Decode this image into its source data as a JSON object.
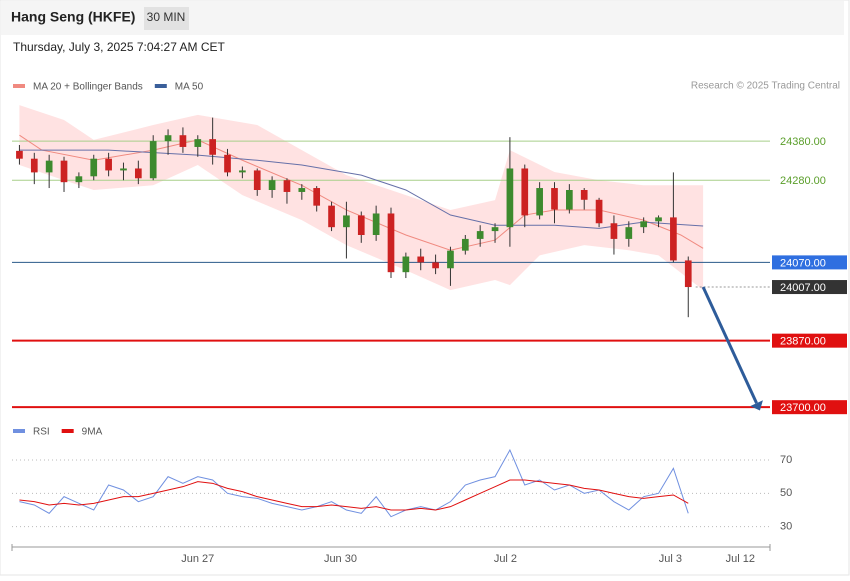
{
  "header": {
    "title": "Hang Seng (HKFE)",
    "interval": "30 MIN",
    "timestamp": "Thursday, July 3, 2025 7:04:27 AM CET"
  },
  "chart_data": {
    "type": "candlestick",
    "legend": [
      {
        "name": "MA 20 + Bollinger Bands",
        "color": "#f08a80"
      },
      {
        "name": "MA 50",
        "color": "#3a5f9a"
      }
    ],
    "credit": "Research © 2025 Trading Central",
    "xlim": [
      -0.5,
      50.5
    ],
    "xticks": [
      {
        "value": 12,
        "label": "Jun 27"
      },
      {
        "value": 21.6,
        "label": "Jun 30"
      },
      {
        "value": 32.7,
        "label": "Jul 2"
      },
      {
        "value": 43.8,
        "label": "Jul 3"
      },
      {
        "value": 48.5,
        "label": "Jul 12"
      }
    ],
    "ylim": [
      23680,
      24485
    ],
    "up_color": "#3d8a2e",
    "down_color": "#cc2222",
    "candles": [
      [
        24355,
        24370,
        24320,
        24335
      ],
      [
        24335,
        24350,
        24270,
        24300
      ],
      [
        24300,
        24345,
        24260,
        24330
      ],
      [
        24330,
        24340,
        24250,
        24275
      ],
      [
        24275,
        24300,
        24260,
        24290
      ],
      [
        24290,
        24345,
        24280,
        24335
      ],
      [
        24335,
        24350,
        24290,
        24305
      ],
      [
        24305,
        24325,
        24280,
        24310
      ],
      [
        24310,
        24330,
        24270,
        24285
      ],
      [
        24285,
        24395,
        24280,
        24380
      ],
      [
        24380,
        24410,
        24345,
        24395
      ],
      [
        24395,
        24415,
        24350,
        24365
      ],
      [
        24365,
        24395,
        24340,
        24385
      ],
      [
        24385,
        24440,
        24320,
        24345
      ],
      [
        24345,
        24360,
        24290,
        24300
      ],
      [
        24300,
        24315,
        24285,
        24305
      ],
      [
        24305,
        24310,
        24240,
        24255
      ],
      [
        24255,
        24290,
        24235,
        24280
      ],
      [
        24280,
        24285,
        24220,
        24250
      ],
      [
        24250,
        24270,
        24230,
        24260
      ],
      [
        24260,
        24265,
        24200,
        24215
      ],
      [
        24215,
        24225,
        24150,
        24160
      ],
      [
        24160,
        24225,
        24080,
        24190
      ],
      [
        24190,
        24200,
        24120,
        24140
      ],
      [
        24140,
        24215,
        24125,
        24195
      ],
      [
        24195,
        24210,
        24030,
        24045
      ],
      [
        24045,
        24095,
        24030,
        24085
      ],
      [
        24085,
        24105,
        24050,
        24070
      ],
      [
        24070,
        24090,
        24040,
        24055
      ],
      [
        24055,
        24110,
        24010,
        24100
      ],
      [
        24100,
        24140,
        24090,
        24130
      ],
      [
        24130,
        24165,
        24110,
        24150
      ],
      [
        24150,
        24170,
        24120,
        24160
      ],
      [
        24160,
        24390,
        24110,
        24310
      ],
      [
        24310,
        24320,
        24160,
        24190
      ],
      [
        24190,
        24275,
        24180,
        24260
      ],
      [
        24260,
        24275,
        24170,
        24205
      ],
      [
        24205,
        24270,
        24195,
        24255
      ],
      [
        24255,
        24260,
        24205,
        24230
      ],
      [
        24230,
        24235,
        24160,
        24170
      ],
      [
        24170,
        24190,
        24090,
        24130
      ],
      [
        24130,
        24175,
        24110,
        24160
      ],
      [
        24160,
        24185,
        24145,
        24175
      ],
      [
        24175,
        24190,
        24160,
        24185
      ],
      [
        24185,
        24300,
        24070,
        24075
      ],
      [
        24075,
        24085,
        23930,
        24007
      ]
    ],
    "bands": {
      "color": "#ffd6d6",
      "upper": {
        "x": [
          0,
          3,
          5,
          9,
          12,
          16,
          19,
          22,
          26,
          29,
          32,
          33,
          36,
          39,
          42,
          46
        ],
        "values": [
          24472,
          24434,
          24383,
          24421,
          24447,
          24421,
          24357,
          24293,
          24242,
          24204,
          24229,
          24357,
          24301,
          24280,
          24267,
          24267
        ]
      },
      "lower": {
        "x": [
          0,
          3,
          5,
          9,
          12,
          15,
          19,
          22,
          26,
          29,
          32,
          33,
          35,
          38,
          41,
          43,
          46
        ],
        "values": [
          24319,
          24280,
          24255,
          24267,
          24319,
          24242,
          24178,
          24114,
          24050,
          23999,
          24025,
          24012,
          24088,
          24114,
          24101,
          24088,
          23999
        ]
      }
    },
    "lines": [
      {
        "name": "MA 20",
        "color": "#f08a80",
        "x": [
          0,
          1.5,
          5,
          9,
          12,
          15,
          19,
          22,
          26,
          29,
          32,
          34,
          36,
          39,
          42,
          44.5,
          46
        ],
        "values": [
          24395,
          24357,
          24331,
          24357,
          24383,
          24331,
          24267,
          24204,
          24140,
          24101,
          24127,
          24191,
          24204,
          24204,
          24178,
          24140,
          24106
        ]
      },
      {
        "name": "MA 50",
        "color": "#6670a8",
        "x": [
          0,
          6,
          12,
          16,
          19,
          23,
          26,
          29,
          32,
          36,
          39,
          42,
          46
        ],
        "values": [
          24357,
          24357,
          24344,
          24331,
          24319,
          24293,
          24255,
          24191,
          24165,
          24165,
          24157,
          24173,
          24163
        ]
      }
    ],
    "levels": [
      {
        "value": 24380,
        "label": "24380.00",
        "color": "#a8cf8a",
        "text": "#5a9e2a",
        "box": false,
        "width": 1
      },
      {
        "value": 24280,
        "label": "24280.00",
        "color": "#a8cf8a",
        "text": "#5a9e2a",
        "box": false,
        "width": 1
      },
      {
        "value": 24070,
        "label": "24070.00",
        "color": "#2a5a8a",
        "text": "#ffffff",
        "box": "#2f6fe0",
        "width": 1
      },
      {
        "value": 24007,
        "label": "24007.00",
        "color": "#999999",
        "text": "#ffffff",
        "box": "#333333",
        "width": 1,
        "dotted": true
      },
      {
        "value": 23870,
        "label": "23870.00",
        "color": "#e01010",
        "text": "#ffffff",
        "box": "#e01010",
        "width": 2
      },
      {
        "value": 23700,
        "label": "23700.00",
        "color": "#e01010",
        "text": "#ffffff",
        "box": "#e01010",
        "width": 2
      }
    ],
    "arrow": {
      "from": [
        46,
        24007
      ],
      "to": [
        50,
        23700
      ],
      "color": "#2e5c9a"
    },
    "rsi": {
      "legend": [
        {
          "name": "RSI",
          "color": "#7090e0"
        },
        {
          "name": "9MA",
          "color": "#e01010"
        }
      ],
      "ylim": [
        19,
        82
      ],
      "yticks": [
        70,
        50,
        30
      ],
      "values": [
        45,
        43,
        38,
        48,
        44,
        40,
        55,
        52,
        45,
        48,
        60,
        56,
        60,
        58,
        50,
        48,
        47,
        44,
        42,
        40,
        42,
        45,
        40,
        38,
        48,
        36,
        40,
        42,
        40,
        45,
        55,
        58,
        60,
        76,
        55,
        58,
        52,
        55,
        50,
        52,
        45,
        40,
        48,
        50,
        65,
        38
      ],
      "ma": [
        46,
        45,
        43,
        44,
        43,
        44,
        46,
        48,
        48,
        50,
        52,
        54,
        57,
        56,
        53,
        51,
        48,
        46,
        44,
        42,
        42,
        43,
        42,
        41,
        42,
        40,
        40,
        41,
        40,
        42,
        46,
        50,
        54,
        58,
        58,
        57,
        56,
        55,
        53,
        52,
        50,
        48,
        47,
        48,
        49,
        44
      ]
    }
  }
}
